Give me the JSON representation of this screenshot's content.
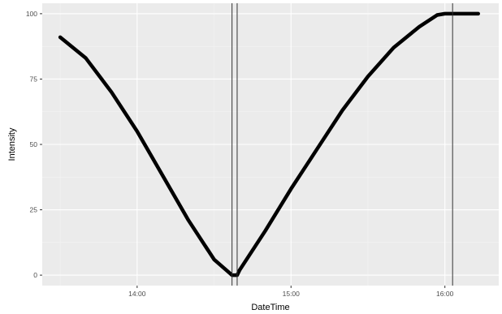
{
  "colors": {
    "panel": "#ebebeb",
    "grid_major": "#ffffff",
    "grid_minor": "#f4f4f4",
    "line": "#000000",
    "vline": "#333333",
    "tick_text": "#4d4d4d"
  },
  "chart_data": {
    "type": "line",
    "title": "",
    "xlabel": "DateTime",
    "ylabel": "Intensity",
    "x_unit": "time (HH:MM)",
    "xlim": [
      "13:23",
      "16:21"
    ],
    "ylim": [
      -4,
      104
    ],
    "x_ticks": [
      "14:00",
      "15:00",
      "16:00"
    ],
    "x_minor_ticks": [
      "13:30",
      "14:30",
      "15:30"
    ],
    "y_ticks": [
      0,
      25,
      50,
      75,
      100
    ],
    "grid": true,
    "legend": "none",
    "series": [
      {
        "x": [
          "13:30",
          "13:40",
          "13:50",
          "14:00",
          "14:10",
          "14:20",
          "14:30",
          "14:37",
          "14:39",
          "14:40",
          "14:50",
          "15:00",
          "15:10",
          "15:20",
          "15:30",
          "15:40",
          "15:50",
          "15:57",
          "16:00",
          "16:10",
          "16:13"
        ],
        "y": [
          91,
          83,
          70,
          55,
          38,
          21,
          6,
          0,
          0,
          2,
          17,
          33,
          48,
          63,
          76,
          87,
          95,
          99.5,
          100,
          100,
          100
        ]
      }
    ],
    "vertical_lines": [
      "14:37",
      "14:39",
      "16:03"
    ]
  }
}
